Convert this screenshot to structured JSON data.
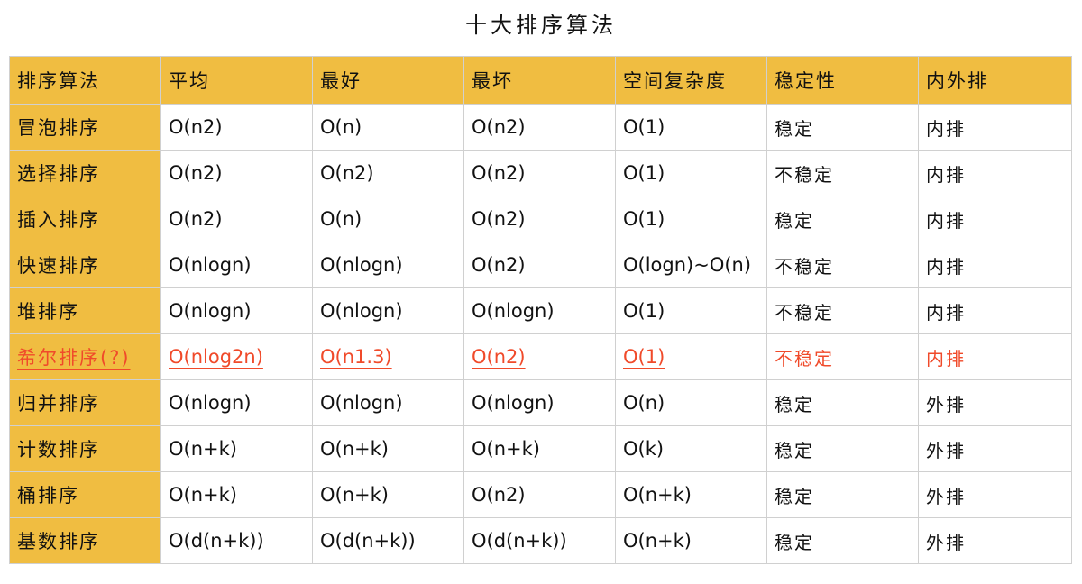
{
  "title": "十大排序算法",
  "accent_color": "#f0bd41",
  "highlight_color": "#f04a2a",
  "columns": [
    "排序算法",
    "平均",
    "最好",
    "最坏",
    "空间复杂度",
    "稳定性",
    "内外排"
  ],
  "rows": [
    [
      "冒泡排序",
      "O(n2)",
      "O(n)",
      "O(n2)",
      "O(1)",
      "稳定",
      "内排"
    ],
    [
      "选择排序",
      "O(n2)",
      "O(n2)",
      "O(n2)",
      "O(1)",
      "不稳定",
      "内排"
    ],
    [
      "插入排序",
      "O(n2)",
      "O(n)",
      "O(n2)",
      "O(1)",
      "稳定",
      "内排"
    ],
    [
      "快速排序",
      "O(nlogn)",
      "O(nlogn)",
      "O(n2)",
      "O(logn)~O(n)",
      "不稳定",
      "内排"
    ],
    [
      "堆排序",
      "O(nlogn)",
      "O(nlogn)",
      "O(nlogn)",
      "O(1)",
      "不稳定",
      "内排"
    ],
    [
      "希尔排序(?)",
      "O(nlog2n)",
      "O(n1.3)",
      "O(n2)",
      "O(1)",
      "不稳定",
      "内排"
    ],
    [
      "归并排序",
      "O(nlogn)",
      "O(nlogn)",
      "O(nlogn)",
      "O(n)",
      "稳定",
      "外排"
    ],
    [
      "计数排序",
      "O(n+k)",
      "O(n+k)",
      "O(n+k)",
      "O(k)",
      "稳定",
      "外排"
    ],
    [
      "桶排序",
      "O(n+k)",
      "O(n+k)",
      "O(n2)",
      "O(n+k)",
      "稳定",
      "外排"
    ],
    [
      "基数排序",
      "O(d(n+k))",
      "O(d(n+k))",
      "O(d(n+k))",
      "O(n+k)",
      "稳定",
      "外排"
    ]
  ],
  "highlighted_row": 5
}
